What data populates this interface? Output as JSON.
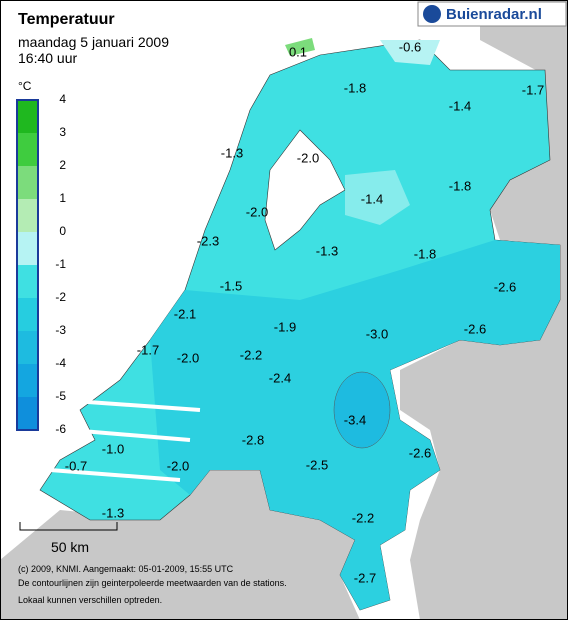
{
  "header": {
    "title": "Temperatuur",
    "date": "maandag 5 januari 2009",
    "time": "16:40 uur",
    "logo": "Buienradar.nl"
  },
  "legend": {
    "unit": "°C",
    "ticks": [
      "4",
      "3",
      "2",
      "1",
      "0",
      "-1",
      "-2",
      "-3",
      "-4",
      "-5",
      "-6"
    ],
    "colors": [
      "#1fb81f",
      "#3fcc3f",
      "#7cdc7c",
      "#b4ecb4",
      "#b6f3f3",
      "#3fe0e2",
      "#26cde0",
      "#1ebbe0",
      "#14a6e0",
      "#0f8fdc"
    ]
  },
  "readings": [
    "0.1",
    "-0.6",
    "-1.8",
    "-1.7",
    "-1.4",
    "-1.3",
    "-2.0",
    "-1.8",
    "-1.4",
    "-2.0",
    "-2.3",
    "-1.3",
    "-1.8",
    "-2.6",
    "-1.5",
    "-2.1",
    "-1.9",
    "-3.0",
    "-2.6",
    "-1.7",
    "-2.0",
    "-2.2",
    "-2.4",
    "-3.4",
    "-1.0",
    "-2.8",
    "-2.6",
    "-0.7",
    "-2.0",
    "-2.5",
    "-1.3",
    "-2.2",
    "-2.7"
  ],
  "scale": "50 km",
  "footer": [
    "(c) 2009, KNMI. Aangemaakt: 05-01-2009, 15:55 UTC",
    "De contourlijnen zijn geinterpoleerde meetwaarden van de stations.",
    "Lokaal kunnen verschillen optreden."
  ]
}
